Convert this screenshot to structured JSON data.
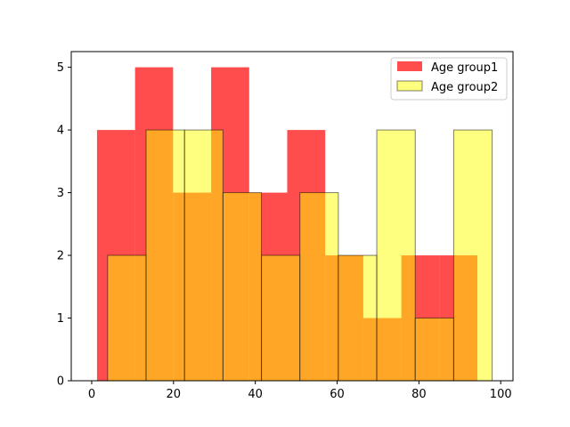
{
  "chart_data": {
    "type": "bar",
    "title": "",
    "xlabel": "",
    "ylabel": "",
    "xlim": [
      -5,
      103
    ],
    "ylim": [
      0,
      5.25
    ],
    "xticks": [
      0,
      20,
      40,
      60,
      80,
      100
    ],
    "yticks": [
      0,
      1,
      2,
      3,
      4,
      5
    ],
    "grid": false,
    "legend_position": "top-right",
    "series": [
      {
        "name": "Age group1",
        "color": "#ff0000",
        "alpha": 0.7,
        "edgecolor": "none",
        "bin_edges": [
          1.3,
          10.6,
          19.9,
          29.2,
          38.5,
          47.8,
          57.1,
          66.4,
          75.7,
          85.0,
          94.3
        ],
        "values": [
          4,
          5,
          3,
          5,
          3,
          4,
          2,
          1,
          2,
          2
        ]
      },
      {
        "name": "Age group2",
        "color": "#ffff00",
        "alpha": 0.5,
        "edgecolor": "#000000",
        "bin_edges": [
          3.9,
          13.3,
          22.7,
          32.1,
          41.5,
          50.9,
          60.3,
          69.7,
          79.1,
          88.5,
          97.9
        ],
        "values": [
          2,
          4,
          4,
          3,
          2,
          3,
          2,
          4,
          1,
          4
        ]
      }
    ]
  }
}
